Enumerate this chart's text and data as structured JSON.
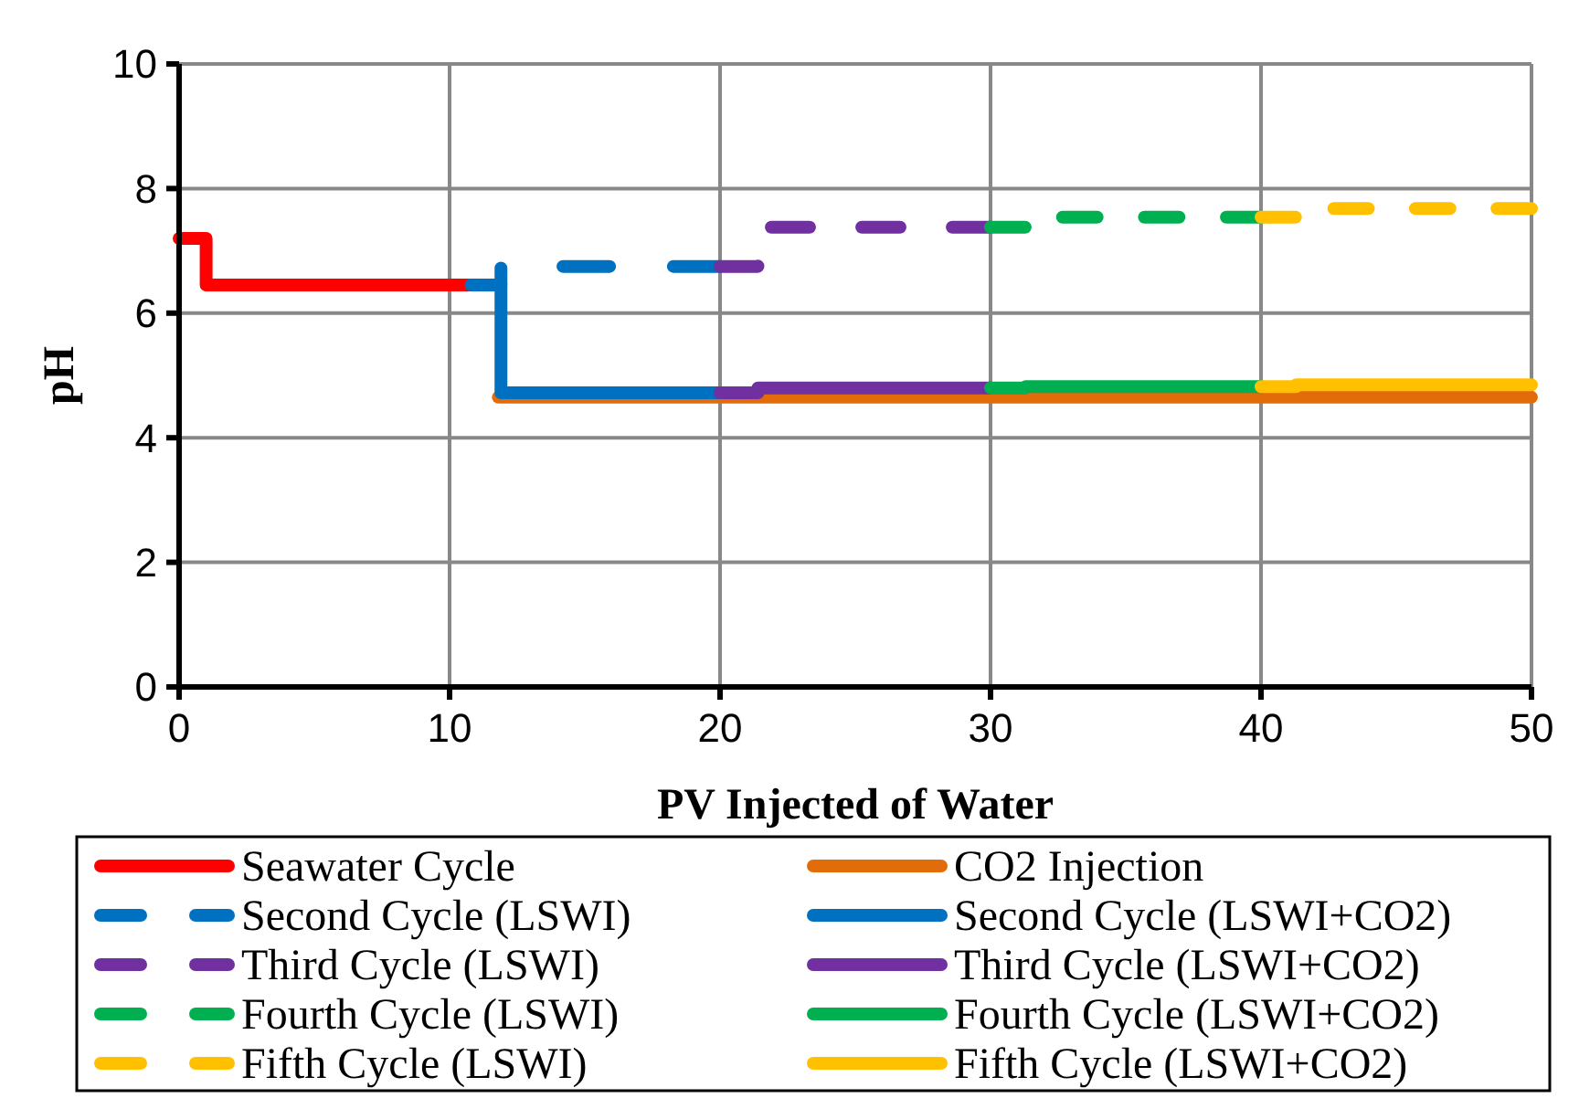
{
  "chart_data": {
    "type": "step",
    "xlabel": "PV Injected of Water",
    "ylabel": "pH",
    "xlim": [
      0,
      50
    ],
    "xticks": [
      0,
      10,
      20,
      30,
      40,
      50
    ],
    "ylim": [
      0,
      10
    ],
    "yticks": [
      0,
      2,
      4,
      6,
      8,
      10
    ],
    "grid": true,
    "legend": "bottom",
    "marker": "none",
    "series": [
      {
        "name": "Seawater Cycle",
        "color": "#ff0000",
        "line_style": "solid",
        "x": [
          0,
          1,
          11
        ],
        "values": [
          7.2,
          6.45,
          6.45
        ]
      },
      {
        "name": "CO2 Injection",
        "color": "#e36c0a",
        "line_style": "solid",
        "x": [
          11.8,
          50
        ],
        "values": [
          4.65,
          4.65
        ]
      },
      {
        "name": "Second Cycle (LSWI)",
        "color": "#0070c0",
        "line_style": "dashed",
        "x": [
          10.8,
          11.9,
          20
        ],
        "values": [
          6.45,
          6.75,
          6.75
        ]
      },
      {
        "name": "Second Cycle (LSWI+CO2)",
        "color": "#0070c0",
        "line_style": "solid",
        "x": [
          10.8,
          11.9,
          20
        ],
        "values": [
          6.45,
          4.72,
          4.72
        ]
      },
      {
        "name": "Third Cycle (LSWI)",
        "color": "#7030a0",
        "line_style": "dashed",
        "x": [
          20,
          21.4,
          30
        ],
        "values": [
          6.75,
          7.38,
          7.38
        ]
      },
      {
        "name": "Third Cycle (LSWI+CO2)",
        "color": "#7030a0",
        "line_style": "solid",
        "x": [
          20,
          21.4,
          30
        ],
        "values": [
          4.72,
          4.8,
          4.8
        ]
      },
      {
        "name": "Fourth Cycle (LSWI)",
        "color": "#00b050",
        "line_style": "dashed",
        "x": [
          30,
          31.3,
          40
        ],
        "values": [
          7.38,
          7.54,
          7.54
        ]
      },
      {
        "name": "Fourth Cycle (LSWI+CO2)",
        "color": "#00b050",
        "line_style": "solid",
        "x": [
          30,
          31.3,
          40
        ],
        "values": [
          4.8,
          4.82,
          4.82
        ]
      },
      {
        "name": "Fifth Cycle (LSWI)",
        "color": "#ffc000",
        "line_style": "dashed",
        "x": [
          40,
          41.3,
          50
        ],
        "values": [
          7.54,
          7.68,
          7.68
        ]
      },
      {
        "name": "Fifth Cycle (LSWI+CO2)",
        "color": "#ffc000",
        "line_style": "solid",
        "x": [
          40,
          41.3,
          50
        ],
        "values": [
          4.82,
          4.85,
          4.85
        ]
      }
    ]
  }
}
